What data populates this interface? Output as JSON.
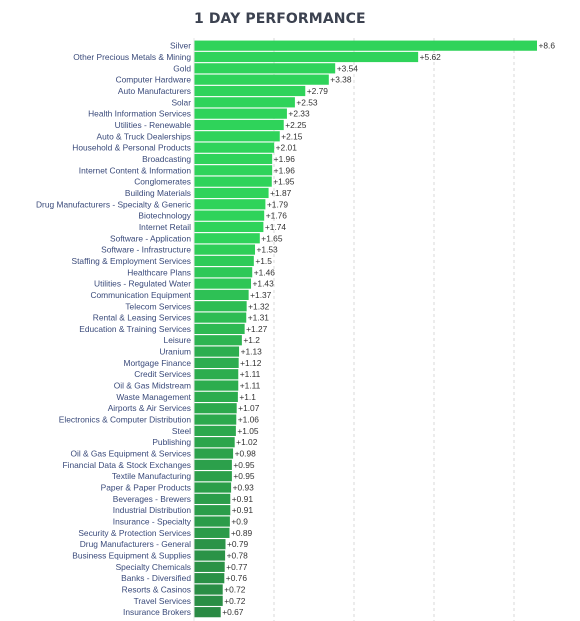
{
  "title": "1 DAY PERFORMANCE",
  "colors": {
    "high": "#2fd35a",
    "low": "#2a8a44",
    "grid": "#d9d9d9"
  },
  "chart_data": {
    "type": "bar",
    "orientation": "horizontal",
    "title": "1 DAY PERFORMANCE",
    "xlim": [
      0,
      8.6
    ],
    "grid": true,
    "categories": [
      "Silver",
      "Other Precious Metals & Mining",
      "Gold",
      "Computer Hardware",
      "Auto Manufacturers",
      "Solar",
      "Health Information Services",
      "Utilities - Renewable",
      "Auto & Truck Dealerships",
      "Household & Personal Products",
      "Broadcasting",
      "Internet Content & Information",
      "Conglomerates",
      "Building Materials",
      "Drug Manufacturers - Specialty & Generic",
      "Biotechnology",
      "Internet Retail",
      "Software - Application",
      "Software - Infrastructure",
      "Staffing & Employment Services",
      "Healthcare Plans",
      "Utilities - Regulated Water",
      "Communication Equipment",
      "Telecom Services",
      "Rental & Leasing Services",
      "Education & Training Services",
      "Leisure",
      "Uranium",
      "Mortgage Finance",
      "Credit Services",
      "Oil & Gas Midstream",
      "Waste Management",
      "Airports & Air Services",
      "Electronics & Computer Distribution",
      "Steel",
      "Publishing",
      "Oil & Gas Equipment & Services",
      "Financial Data & Stock Exchanges",
      "Textile Manufacturing",
      "Paper & Paper Products",
      "Beverages - Brewers",
      "Industrial Distribution",
      "Insurance - Specialty",
      "Security & Protection Services",
      "Drug Manufacturers - General",
      "Business Equipment & Supplies",
      "Specialty Chemicals",
      "Banks - Diversified",
      "Resorts & Casinos",
      "Travel Services",
      "Insurance Brokers"
    ],
    "values": [
      8.6,
      5.62,
      3.54,
      3.38,
      2.79,
      2.53,
      2.33,
      2.25,
      2.15,
      2.01,
      1.96,
      1.96,
      1.95,
      1.87,
      1.79,
      1.76,
      1.74,
      1.65,
      1.53,
      1.5,
      1.46,
      1.43,
      1.37,
      1.32,
      1.31,
      1.27,
      1.2,
      1.13,
      1.12,
      1.11,
      1.11,
      1.1,
      1.07,
      1.06,
      1.05,
      1.02,
      0.98,
      0.95,
      0.95,
      0.93,
      0.91,
      0.91,
      0.9,
      0.89,
      0.79,
      0.78,
      0.77,
      0.76,
      0.72,
      0.72,
      0.67
    ],
    "value_labels": [
      "+8.6",
      "+5.62",
      "+3.54",
      "+3.38",
      "+2.79",
      "+2.53",
      "+2.33",
      "+2.25",
      "+2.15",
      "+2.01",
      "+1.96",
      "+1.96",
      "+1.95",
      "+1.87",
      "+1.79",
      "+1.76",
      "+1.74",
      "+1.65",
      "+1.53",
      "+1.5",
      "+1.46",
      "+1.43",
      "+1.37",
      "+1.32",
      "+1.31",
      "+1.27",
      "+1.2",
      "+1.13",
      "+1.12",
      "+1.11",
      "+1.11",
      "+1.1",
      "+1.07",
      "+1.06",
      "+1.05",
      "+1.02",
      "+0.98",
      "+0.95",
      "+0.95",
      "+0.93",
      "+0.91",
      "+0.91",
      "+0.9",
      "+0.89",
      "+0.79",
      "+0.78",
      "+0.77",
      "+0.76",
      "+0.72",
      "+0.72",
      "+0.67"
    ]
  }
}
